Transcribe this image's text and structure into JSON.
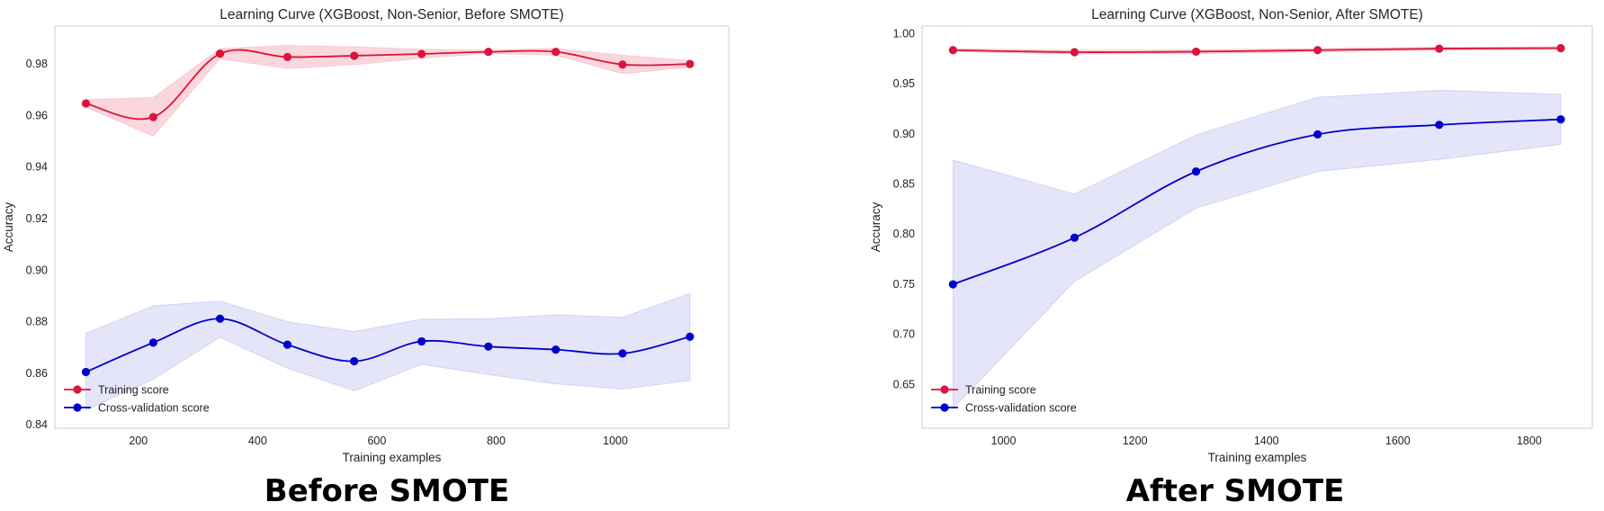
{
  "chart_data": [
    {
      "type": "line",
      "title": "Learning Curve (XGBoost, Non-Senior, Before SMOTE)",
      "xlabel": "Training examples",
      "ylabel": "Accuracy",
      "xlim": [
        60,
        1190
      ],
      "ylim": [
        0.8385,
        0.9945
      ],
      "xticks": [
        200,
        400,
        600,
        800,
        1000
      ],
      "xtick_labels": [
        "200",
        "400",
        "600",
        "800",
        "1000"
      ],
      "yticks": [
        0.84,
        0.86,
        0.88,
        0.9,
        0.92,
        0.94,
        0.96,
        0.98
      ],
      "ytick_labels": [
        "0.84",
        "0.86",
        "0.88",
        "0.90",
        "0.92",
        "0.94",
        "0.96",
        "0.98"
      ],
      "grid": false,
      "legend_position": "lower-left",
      "x": [
        112,
        225,
        337,
        450,
        562,
        675,
        787,
        900,
        1012,
        1125
      ],
      "series": [
        {
          "name": "Training score",
          "color": "#dc143c",
          "fill_color": "#f9c9d2",
          "values": [
            0.9645,
            0.9592,
            0.9838,
            0.9825,
            0.983,
            0.9837,
            0.9845,
            0.9845,
            0.9796,
            0.9798
          ],
          "lower": [
            0.963,
            0.9518,
            0.9818,
            0.978,
            0.9795,
            0.982,
            0.9838,
            0.9832,
            0.976,
            0.9785
          ],
          "upper": [
            0.966,
            0.9668,
            0.9858,
            0.987,
            0.9865,
            0.9855,
            0.9852,
            0.9858,
            0.9832,
            0.9812
          ]
        },
        {
          "name": "Cross-validation score",
          "color": "#0000cd",
          "fill_color": "#dcdcf7",
          "values": [
            0.8603,
            0.8717,
            0.881,
            0.8709,
            0.8645,
            0.8722,
            0.8702,
            0.869,
            0.8675,
            0.874
          ],
          "lower": [
            0.8455,
            0.8575,
            0.8738,
            0.8618,
            0.853,
            0.8633,
            0.8593,
            0.8557,
            0.8537,
            0.857
          ],
          "upper": [
            0.8753,
            0.886,
            0.8878,
            0.8798,
            0.876,
            0.8808,
            0.881,
            0.8825,
            0.8815,
            0.8908
          ]
        }
      ]
    },
    {
      "type": "line",
      "title": "Learning Curve (XGBoost, Non-Senior, After SMOTE)",
      "xlabel": "Training examples",
      "ylabel": "Accuracy",
      "xlim": [
        876,
        1896
      ],
      "ylim": [
        0.606,
        1.007
      ],
      "xticks": [
        1000,
        1200,
        1400,
        1600,
        1800
      ],
      "xtick_labels": [
        "1000",
        "1200",
        "1400",
        "1600",
        "1800"
      ],
      "yticks": [
        0.65,
        0.7,
        0.75,
        0.8,
        0.85,
        0.9,
        0.95,
        1.0
      ],
      "ytick_labels": [
        "0.65",
        "0.70",
        "0.75",
        "0.80",
        "0.85",
        "0.90",
        "0.95",
        "1.00"
      ],
      "grid": false,
      "legend_position": "lower-left",
      "x": [
        923,
        1108,
        1293,
        1478,
        1663,
        1848
      ],
      "series": [
        {
          "name": "Training score",
          "color": "#dc143c",
          "fill_color": "#f9c9d2",
          "values": [
            0.983,
            0.981,
            0.9815,
            0.983,
            0.9845,
            0.985
          ],
          "lower": [
            0.9815,
            0.979,
            0.9795,
            0.9812,
            0.983,
            0.9835
          ],
          "upper": [
            0.9845,
            0.983,
            0.9835,
            0.9848,
            0.986,
            0.9865
          ]
        },
        {
          "name": "Cross-validation score",
          "color": "#0000cd",
          "fill_color": "#dcdcf7",
          "values": [
            0.7495,
            0.796,
            0.862,
            0.899,
            0.9085,
            0.914
          ],
          "lower": [
            0.6255,
            0.7525,
            0.8255,
            0.862,
            0.874,
            0.889
          ],
          "upper": [
            0.8735,
            0.8395,
            0.8985,
            0.936,
            0.943,
            0.939
          ]
        }
      ]
    }
  ],
  "captions": [
    "Before SMOTE",
    "After SMOTE"
  ]
}
